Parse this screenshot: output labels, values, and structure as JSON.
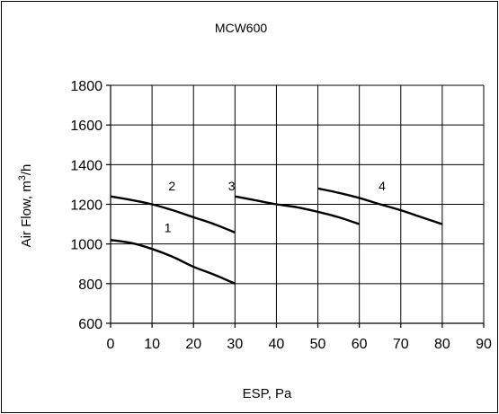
{
  "chart_data": {
    "type": "line",
    "title": "MCW600",
    "xlabel": "ESP, Pa",
    "ylabel_main": "Air Flow, m",
    "ylabel_sup": "3",
    "ylabel_tail": "/h",
    "xlim": [
      0,
      90
    ],
    "ylim": [
      600,
      1800
    ],
    "xticks": [
      "0",
      "10",
      "20",
      "30",
      "40",
      "50",
      "60",
      "70",
      "80",
      "90"
    ],
    "yticks": [
      "600",
      "800",
      "1000",
      "1200",
      "1400",
      "1600",
      "1800"
    ],
    "grid": true,
    "series": [
      {
        "name": "1",
        "x": [
          0,
          5,
          10,
          15,
          20,
          25,
          30
        ],
        "y": [
          1020,
          1005,
          975,
          935,
          885,
          845,
          800
        ]
      },
      {
        "name": "2",
        "x": [
          0,
          5,
          10,
          15,
          20,
          25,
          30
        ],
        "y": [
          1240,
          1222,
          1200,
          1170,
          1135,
          1100,
          1058
        ]
      },
      {
        "name": "3",
        "x": [
          30,
          35,
          40,
          45,
          50,
          55,
          60
        ],
        "y": [
          1240,
          1220,
          1200,
          1185,
          1162,
          1135,
          1100
        ]
      },
      {
        "name": "4",
        "x": [
          50,
          55,
          60,
          65,
          70,
          75,
          80
        ],
        "y": [
          1280,
          1258,
          1232,
          1200,
          1170,
          1135,
          1100
        ]
      }
    ]
  }
}
